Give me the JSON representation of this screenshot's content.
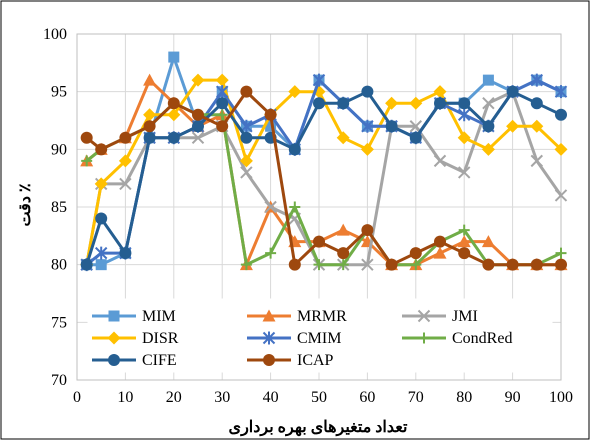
{
  "chart_data": {
    "type": "line",
    "xlabel": "تعداد متغیرهای بهره برداری",
    "ylabel": "دقت ٪",
    "xlim": [
      0,
      100
    ],
    "ylim": [
      70,
      100
    ],
    "x_ticks": [
      0,
      10,
      20,
      30,
      40,
      50,
      60,
      70,
      80,
      90,
      100
    ],
    "y_ticks": [
      70,
      75,
      80,
      85,
      90,
      95,
      100
    ],
    "grid": true,
    "legend_position": "bottom-inside",
    "x": [
      2,
      5,
      10,
      15,
      20,
      25,
      30,
      35,
      40,
      45,
      50,
      55,
      60,
      65,
      70,
      75,
      80,
      85,
      90,
      95,
      100
    ],
    "series": [
      {
        "name": "MIM",
        "color": "#5B9BD5",
        "marker": "square",
        "values": [
          80,
          80,
          81,
          91,
          98,
          92,
          95,
          92,
          92,
          90,
          96,
          94,
          92,
          92,
          91,
          94,
          94,
          96,
          95,
          96,
          95
        ]
      },
      {
        "name": "MRMR",
        "color": "#ED7D31",
        "marker": "triangle",
        "values": [
          89,
          90,
          91,
          96,
          94,
          92,
          93,
          80,
          85,
          82,
          82,
          83,
          82,
          80,
          80,
          81,
          82,
          82,
          80,
          80,
          80
        ]
      },
      {
        "name": "JMI",
        "color": "#A5A5A5",
        "marker": "x",
        "values": [
          80,
          87,
          87,
          91,
          91,
          91,
          92,
          88,
          85,
          84,
          80,
          80,
          80,
          92,
          92,
          89,
          88,
          94,
          95,
          89,
          86
        ]
      },
      {
        "name": "DISR",
        "color": "#FFC000",
        "marker": "diamond",
        "values": [
          80,
          87,
          89,
          93,
          93,
          96,
          96,
          89,
          93,
          95,
          95,
          91,
          90,
          94,
          94,
          95,
          91,
          90,
          92,
          92,
          90
        ]
      },
      {
        "name": "CMIM",
        "color": "#4472C4",
        "marker": "star",
        "values": [
          80,
          81,
          81,
          91,
          91,
          92,
          95,
          92,
          93,
          90,
          96,
          94,
          92,
          92,
          91,
          94,
          93,
          92,
          95,
          96,
          95
        ]
      },
      {
        "name": "CondRed",
        "color": "#70AD47",
        "marker": "plus",
        "values": [
          89,
          90,
          91,
          92,
          94,
          93,
          93,
          80,
          81,
          85,
          80,
          80,
          83,
          80,
          80,
          82,
          83,
          80,
          80,
          80,
          81
        ]
      },
      {
        "name": "CIFE",
        "color": "#255E91",
        "marker": "circle",
        "values": [
          80,
          84,
          81,
          91,
          91,
          92,
          94,
          91,
          91,
          90,
          94,
          94,
          95,
          92,
          91,
          94,
          94,
          92,
          95,
          94,
          93
        ]
      },
      {
        "name": "ICAP",
        "color": "#9E480E",
        "marker": "circle",
        "values": [
          91,
          90,
          91,
          92,
          94,
          93,
          92,
          95,
          93,
          80,
          82,
          81,
          83,
          80,
          81,
          82,
          81,
          80,
          80,
          80,
          80
        ]
      }
    ]
  }
}
